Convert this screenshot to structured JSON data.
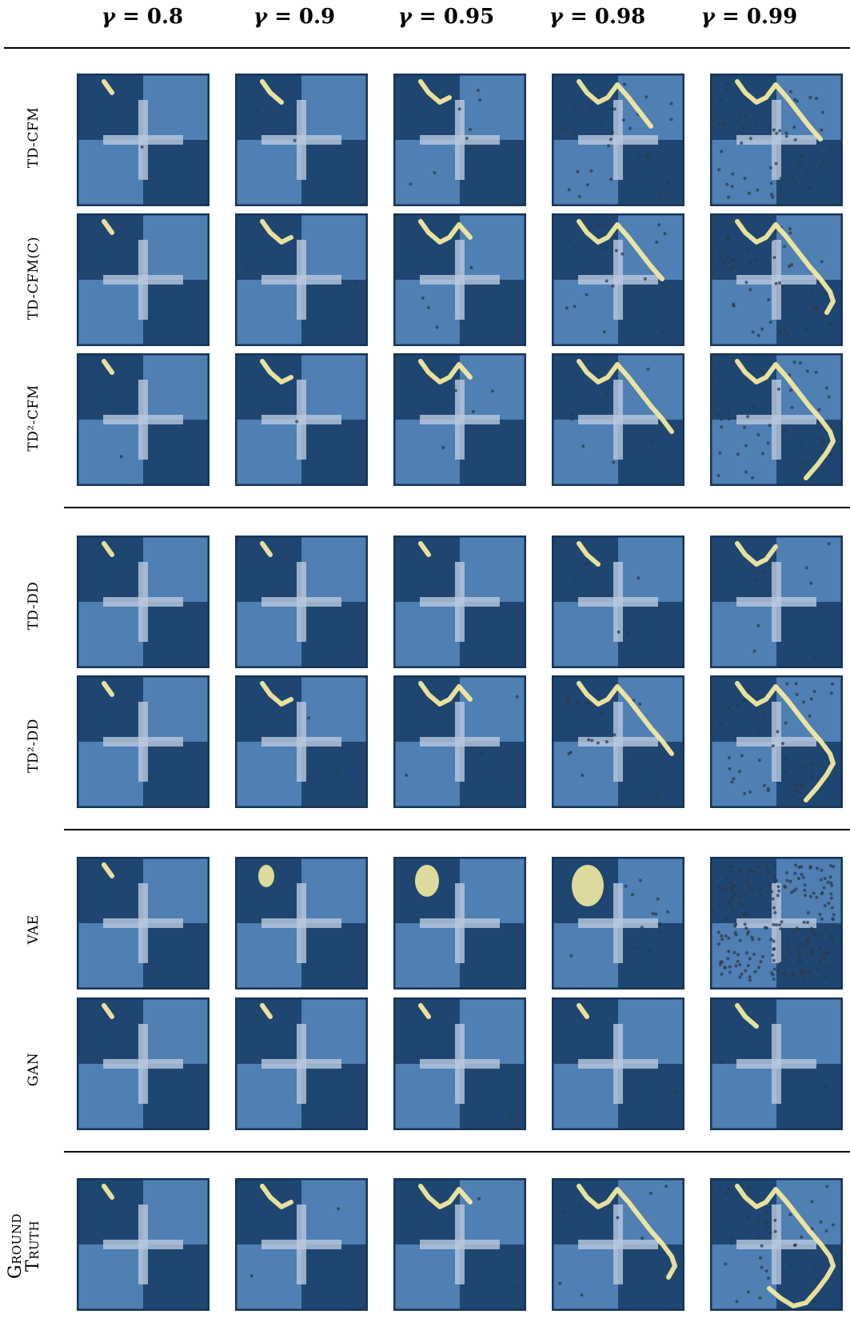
{
  "column_headers": [
    {
      "sym": "γ",
      "val": "0.8"
    },
    {
      "sym": "γ",
      "val": "0.9"
    },
    {
      "sym": "γ",
      "val": "0.95"
    },
    {
      "sym": "γ",
      "val": "0.98"
    },
    {
      "sym": "γ",
      "val": "0.99"
    }
  ],
  "row_labels": [
    "TD-CFM",
    "TD-CFM(C)",
    "TD²-CFM",
    "TD-DD",
    "TD²-DD",
    "VAE",
    "GAN",
    "Ground Truth"
  ],
  "ground_truth": {
    "line1": "Ground",
    "line2": "Truth"
  },
  "colors": {
    "panel_dark": "#1f4670",
    "panel_light": "#4f7fb3",
    "cross": "#b9c9de",
    "samples": "#f3eaa0",
    "outlier_dots": "#2b3a4a"
  }
}
